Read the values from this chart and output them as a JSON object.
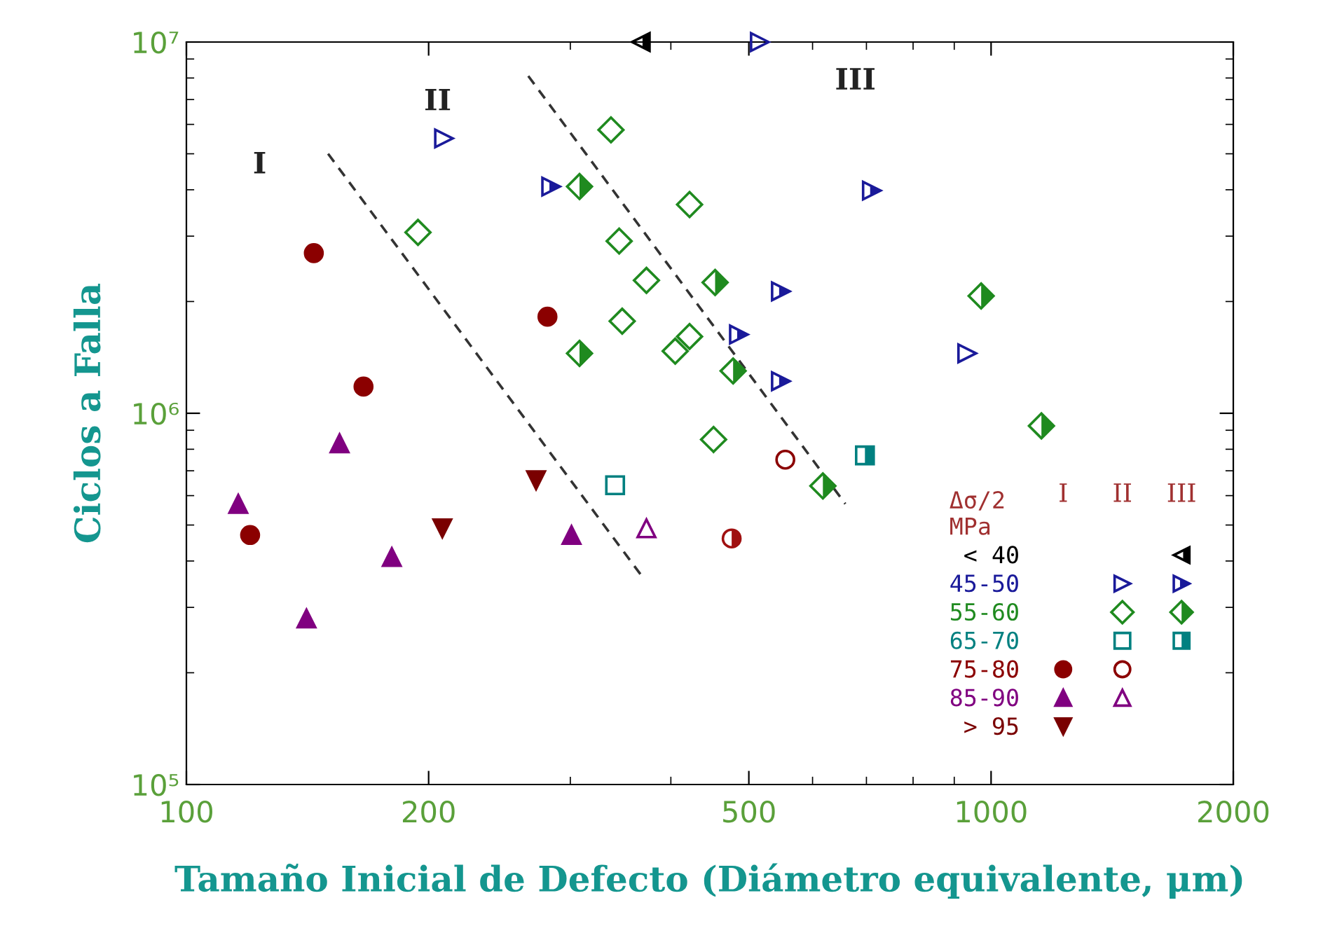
{
  "chart_data": {
    "type": "scatter",
    "xlabel": "Tamaño Inicial de Defecto (Diámetro equivalente, μm)",
    "ylabel": "Ciclos a Falla",
    "log": "xy",
    "xlim": [
      100,
      2000
    ],
    "xticks": [
      100,
      200,
      500,
      1000,
      2000
    ],
    "ylim": [
      100000,
      10000000
    ],
    "yticks": [
      {
        "value": 100000,
        "label": "10⁵"
      },
      {
        "value": 1000000,
        "label": "10⁶"
      },
      {
        "value": 10000000,
        "label": "10⁷"
      }
    ],
    "grid": false,
    "legend": "bottom right",
    "legend_title": "Δσ/2\nMPa",
    "annotations": [
      "I",
      "II",
      "III",
      "I",
      "II",
      "III"
    ],
    "series": [
      {
        "name": "< 40",
        "color": "#000000",
        "marker": "triangle",
        "x": [
          367
        ],
        "values": [
          10000000
        ]
      },
      {
        "name": "45-50",
        "color": "#1a1a9a",
        "marker": "triangle",
        "x": [
          284,
          711,
          548,
          486,
          548
        ],
        "values": [
          4080000,
          3980000,
          2130000,
          1630000,
          1220000
        ]
      },
      {
        "name": "55-60",
        "color": "#1f8a1f",
        "marker": "diamond",
        "x": [
          308,
          454,
          308,
          478,
          972,
          1155,
          618
        ],
        "values": [
          4080000,
          2250000,
          1450000,
          1300000,
          2070000,
          925000,
          637000
        ]
      },
      {
        "name": "65-70",
        "color": "#008080",
        "marker": "square",
        "x": [
          697
        ],
        "values": [
          770000
        ]
      },
      {
        "color": "#a01010",
        "marker": "circle",
        "x": [
          476
        ],
        "values": [
          460000
        ]
      },
      {
        "color": "#1a1a9a",
        "marker": "triangle",
        "x": [
          209,
          516,
          934
        ],
        "values": [
          5500000,
          10000000,
          1450000
        ]
      },
      {
        "color": "#1f8a1f",
        "marker": "diamond",
        "x": [
          337,
          422,
          194,
          345,
          373,
          348,
          422,
          405,
          452
        ],
        "values": [
          5800000,
          3650000,
          3070000,
          2910000,
          2280000,
          1770000,
          1610000,
          1470000,
          850000
        ]
      },
      {
        "color": "#008080",
        "marker": "square",
        "x": [
          341
        ],
        "values": [
          640000
        ]
      },
      {
        "name": "75-80",
        "color": "#8b0000",
        "marker": "circle",
        "x": [
          555
        ],
        "values": [
          750000
        ]
      },
      {
        "name": "85-90",
        "color": "#800080",
        "marker": "triangle",
        "x": [
          373
        ],
        "values": [
          490000
        ]
      },
      {
        "color": "#8b0000",
        "marker": "circle",
        "x": [
          144,
          281,
          166,
          120
        ],
        "values": [
          2700000,
          1820000,
          1180000,
          470000
        ]
      },
      {
        "color": "#800080",
        "marker": "triangle",
        "x": [
          116,
          155,
          180,
          141,
          301
        ],
        "values": [
          570000,
          830000,
          410000,
          280000,
          470000
        ]
      },
      {
        "name": "> 95",
        "color": "#7a0000",
        "marker": "triangle",
        "x": [
          208,
          272
        ],
        "values": [
          490000,
          660000
        ]
      },
      {
        "type": "line",
        "color": "#333333",
        "line_style": "dashed",
        "marker": "none",
        "x": [
          150,
          371
        ],
        "values": [
          5000000,
          356000
        ]
      },
      {
        "type": "line",
        "color": "#333333",
        "line_style": "dashed",
        "marker": "none",
        "x": [
          266,
          659
        ],
        "values": [
          8100000,
          570000
        ]
      }
    ]
  }
}
